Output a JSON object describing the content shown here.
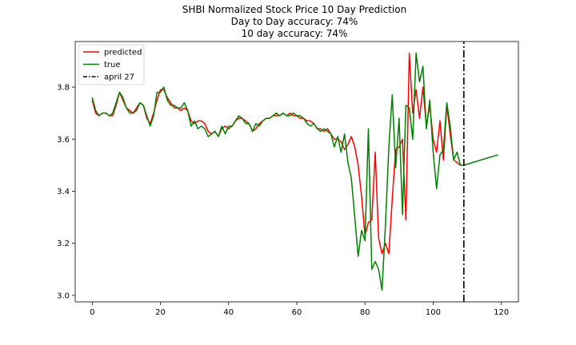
{
  "chart_data": {
    "type": "line",
    "title_lines": [
      "SHBI Normalized Stock Price 10 Day Prediction",
      "Day to Day accuracy: 74%",
      "10 day accuracy: 74%"
    ],
    "xlabel": "",
    "ylabel": "",
    "xlim": [
      -5,
      125
    ],
    "ylim": [
      2.975,
      3.975
    ],
    "x_ticks": [
      0,
      20,
      40,
      60,
      80,
      100,
      120
    ],
    "y_ticks": [
      3.0,
      3.2,
      3.4,
      3.6,
      3.8
    ],
    "grid": false,
    "legend_position": "top-left",
    "series": [
      {
        "name": "predicted",
        "color": "#ff0000",
        "line_style": "solid",
        "x": [
          0,
          1,
          2,
          3,
          4,
          5,
          6,
          7,
          8,
          9,
          10,
          11,
          12,
          13,
          14,
          15,
          16,
          17,
          18,
          19,
          20,
          21,
          22,
          23,
          24,
          25,
          26,
          27,
          28,
          29,
          30,
          31,
          32,
          33,
          34,
          35,
          36,
          37,
          38,
          39,
          40,
          41,
          42,
          43,
          44,
          45,
          46,
          47,
          48,
          49,
          50,
          51,
          52,
          53,
          54,
          55,
          56,
          57,
          58,
          59,
          60,
          61,
          62,
          63,
          64,
          65,
          66,
          67,
          68,
          69,
          70,
          71,
          72,
          73,
          74,
          75,
          76,
          77,
          78,
          79,
          80,
          81,
          82,
          83,
          84,
          85,
          86,
          87,
          88,
          89,
          90,
          91,
          92,
          93,
          94,
          95,
          96,
          97,
          98,
          99,
          100,
          101,
          102,
          103,
          104,
          105,
          106,
          107,
          108
        ],
        "y": [
          3.75,
          3.7,
          3.69,
          3.7,
          3.7,
          3.69,
          3.69,
          3.73,
          3.78,
          3.75,
          3.72,
          3.71,
          3.7,
          3.72,
          3.74,
          3.73,
          3.68,
          3.66,
          3.7,
          3.75,
          3.79,
          3.79,
          3.76,
          3.74,
          3.72,
          3.72,
          3.71,
          3.72,
          3.71,
          3.67,
          3.66,
          3.67,
          3.67,
          3.66,
          3.63,
          3.62,
          3.63,
          3.61,
          3.64,
          3.65,
          3.64,
          3.65,
          3.67,
          3.68,
          3.68,
          3.67,
          3.66,
          3.63,
          3.64,
          3.66,
          3.67,
          3.68,
          3.68,
          3.69,
          3.69,
          3.69,
          3.7,
          3.69,
          3.7,
          3.69,
          3.69,
          3.68,
          3.68,
          3.67,
          3.67,
          3.66,
          3.64,
          3.64,
          3.63,
          3.64,
          3.62,
          3.6,
          3.6,
          3.59,
          3.56,
          3.58,
          3.61,
          3.57,
          3.5,
          3.38,
          3.23,
          3.28,
          3.29,
          3.55,
          3.22,
          3.16,
          3.2,
          3.16,
          3.37,
          3.56,
          3.57,
          3.6,
          3.29,
          3.93,
          3.7,
          3.79,
          3.68,
          3.8,
          3.65,
          3.73,
          3.6,
          3.55,
          3.67,
          3.52,
          3.73,
          3.62,
          3.52,
          3.51,
          3.5
        ]
      },
      {
        "name": "true",
        "color": "#008000",
        "line_style": "solid",
        "x": [
          0,
          1,
          2,
          3,
          4,
          5,
          6,
          7,
          8,
          9,
          10,
          11,
          12,
          13,
          14,
          15,
          16,
          17,
          18,
          19,
          20,
          21,
          22,
          23,
          24,
          25,
          26,
          27,
          28,
          29,
          30,
          31,
          32,
          33,
          34,
          35,
          36,
          37,
          38,
          39,
          40,
          41,
          42,
          43,
          44,
          45,
          46,
          47,
          48,
          49,
          50,
          51,
          52,
          53,
          54,
          55,
          56,
          57,
          58,
          59,
          60,
          61,
          62,
          63,
          64,
          65,
          66,
          67,
          68,
          69,
          70,
          71,
          72,
          73,
          74,
          75,
          76,
          77,
          78,
          79,
          80,
          81,
          82,
          83,
          84,
          85,
          86,
          87,
          88,
          89,
          90,
          91,
          92,
          93,
          94,
          95,
          96,
          97,
          98,
          99,
          100,
          101,
          102,
          103,
          104,
          105,
          106,
          107,
          108,
          109,
          119
        ],
        "y": [
          3.76,
          3.71,
          3.69,
          3.7,
          3.7,
          3.69,
          3.7,
          3.74,
          3.78,
          3.76,
          3.72,
          3.7,
          3.7,
          3.71,
          3.74,
          3.73,
          3.69,
          3.65,
          3.69,
          3.78,
          3.78,
          3.8,
          3.75,
          3.73,
          3.73,
          3.72,
          3.72,
          3.74,
          3.71,
          3.65,
          3.67,
          3.64,
          3.65,
          3.64,
          3.61,
          3.62,
          3.63,
          3.61,
          3.65,
          3.62,
          3.65,
          3.65,
          3.67,
          3.69,
          3.68,
          3.66,
          3.66,
          3.63,
          3.66,
          3.65,
          3.67,
          3.68,
          3.68,
          3.69,
          3.7,
          3.69,
          3.7,
          3.69,
          3.69,
          3.7,
          3.69,
          3.69,
          3.68,
          3.66,
          3.65,
          3.66,
          3.64,
          3.63,
          3.64,
          3.63,
          3.62,
          3.57,
          3.61,
          3.55,
          3.62,
          3.51,
          3.45,
          3.3,
          3.15,
          3.25,
          3.21,
          3.64,
          3.1,
          3.13,
          3.1,
          3.02,
          3.27,
          3.57,
          3.77,
          3.49,
          3.68,
          3.31,
          3.73,
          3.72,
          3.6,
          3.93,
          3.82,
          3.88,
          3.64,
          3.75,
          3.55,
          3.41,
          3.54,
          3.56,
          3.74,
          3.65,
          3.52,
          3.55,
          3.5,
          3.5,
          3.54
        ]
      },
      {
        "name": "april 27",
        "color": "#000000",
        "line_style": "dash-dot",
        "x": [
          109,
          109
        ],
        "y": [
          2.975,
          3.975
        ]
      }
    ]
  }
}
